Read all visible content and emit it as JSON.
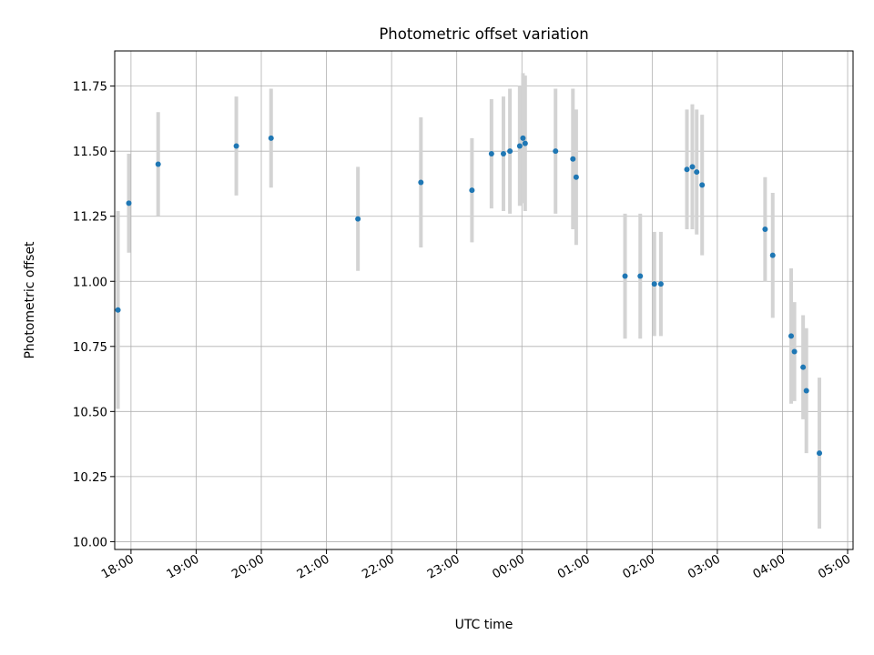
{
  "chart_data": {
    "type": "scatter",
    "title": "Photometric offset variation",
    "xlabel": "UTC time",
    "ylabel": "Photometric offset",
    "x_axis_type": "time",
    "xlim": [
      "17:45",
      "05:05"
    ],
    "ylim": [
      9.97,
      11.885
    ],
    "x_ticks": [
      "18:00",
      "19:00",
      "20:00",
      "21:00",
      "22:00",
      "23:00",
      "00:00",
      "01:00",
      "02:00",
      "03:00",
      "04:00",
      "05:00"
    ],
    "y_ticks": [
      "10.00",
      "10.25",
      "10.50",
      "10.75",
      "11.00",
      "11.25",
      "11.50",
      "11.75"
    ],
    "x_tick_rotation": 30,
    "grid": true,
    "point_color": "#1f77b4",
    "errorbar_color": "#d3d3d3",
    "points": [
      {
        "t": "17:48",
        "y": 10.89,
        "err": 0.38
      },
      {
        "t": "17:58",
        "y": 11.3,
        "err": 0.19
      },
      {
        "t": "18:25",
        "y": 11.45,
        "err": 0.2
      },
      {
        "t": "19:37",
        "y": 11.52,
        "err": 0.19
      },
      {
        "t": "20:09",
        "y": 11.55,
        "err": 0.19
      },
      {
        "t": "21:29",
        "y": 11.24,
        "err": 0.2
      },
      {
        "t": "22:27",
        "y": 11.38,
        "err": 0.25
      },
      {
        "t": "23:14",
        "y": 11.35,
        "err": 0.2
      },
      {
        "t": "23:32",
        "y": 11.49,
        "err": 0.21
      },
      {
        "t": "23:43",
        "y": 11.49,
        "err": 0.22
      },
      {
        "t": "23:49",
        "y": 11.5,
        "err": 0.24
      },
      {
        "t": "23:58",
        "y": 11.52,
        "err": 0.23
      },
      {
        "t": "00:01",
        "y": 11.55,
        "err": 0.25
      },
      {
        "t": "00:03",
        "y": 11.53,
        "err": 0.26
      },
      {
        "t": "00:31",
        "y": 11.5,
        "err": 0.24
      },
      {
        "t": "00:47",
        "y": 11.47,
        "err": 0.27
      },
      {
        "t": "00:50",
        "y": 11.4,
        "err": 0.26
      },
      {
        "t": "01:35",
        "y": 11.02,
        "err": 0.24
      },
      {
        "t": "01:49",
        "y": 11.02,
        "err": 0.24
      },
      {
        "t": "02:02",
        "y": 10.99,
        "err": 0.2
      },
      {
        "t": "02:08",
        "y": 10.99,
        "err": 0.2
      },
      {
        "t": "02:32",
        "y": 11.43,
        "err": 0.23
      },
      {
        "t": "02:37",
        "y": 11.44,
        "err": 0.24
      },
      {
        "t": "02:41",
        "y": 11.42,
        "err": 0.24
      },
      {
        "t": "02:46",
        "y": 11.37,
        "err": 0.27
      },
      {
        "t": "03:44",
        "y": 11.2,
        "err": 0.2
      },
      {
        "t": "03:51",
        "y": 11.1,
        "err": 0.24
      },
      {
        "t": "04:08",
        "y": 10.79,
        "err": 0.26
      },
      {
        "t": "04:11",
        "y": 10.73,
        "err": 0.19
      },
      {
        "t": "04:19",
        "y": 10.67,
        "err": 0.2
      },
      {
        "t": "04:22",
        "y": 10.58,
        "err": 0.24
      },
      {
        "t": "04:34",
        "y": 10.34,
        "err": 0.29
      }
    ]
  }
}
